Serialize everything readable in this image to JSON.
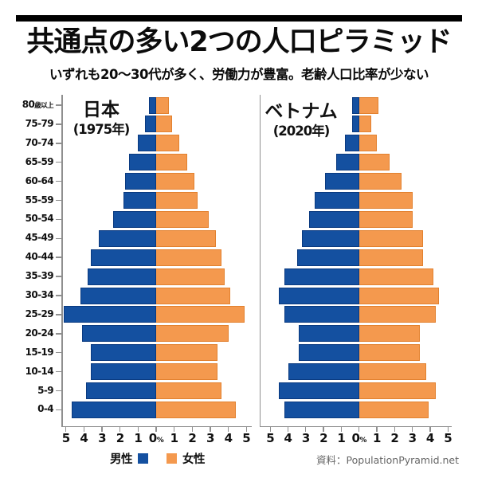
{
  "header": {
    "title": "共通点の多い2つの人口ピラミッド",
    "subtitle": "いずれも20〜30代が多く、労働力が豊富。老齢人口比率が少ない"
  },
  "source": "資料：PopulationPyramid.net",
  "chart_data": {
    "type": "bar",
    "subtype": "population-pyramid-pair",
    "unit": "% of total population",
    "grid": false,
    "xlim_each_side": 5,
    "age_groups_top_to_bottom": [
      "80歳以上",
      "75-79",
      "70-74",
      "65-59",
      "60-64",
      "55-59",
      "50-54",
      "45-49",
      "40-44",
      "35-39",
      "30-34",
      "25-29",
      "20-24",
      "15-19",
      "10-14",
      "5-9",
      "0-4"
    ],
    "axis_ticks": [
      "5",
      "4",
      "3",
      "2",
      "1",
      "0%",
      "1",
      "2",
      "3",
      "4",
      "5"
    ],
    "pyramids": [
      {
        "title": "日本",
        "year_label": "(1975年)",
        "male_top_to_bottom": [
          0.4,
          0.6,
          1.0,
          1.5,
          1.7,
          1.8,
          2.4,
          3.2,
          3.6,
          3.8,
          4.2,
          5.1,
          4.1,
          3.6,
          3.6,
          3.9,
          4.7
        ],
        "female_top_to_bottom": [
          0.7,
          0.9,
          1.3,
          1.7,
          2.1,
          2.3,
          2.9,
          3.3,
          3.6,
          3.8,
          4.1,
          4.9,
          4.0,
          3.4,
          3.4,
          3.6,
          4.4
        ]
      },
      {
        "title": "ベトナム",
        "year_label": "(2020年)",
        "male_top_to_bottom": [
          0.4,
          0.4,
          0.8,
          1.3,
          1.9,
          2.5,
          2.8,
          3.2,
          3.5,
          4.2,
          4.5,
          4.2,
          3.4,
          3.4,
          4.0,
          4.5,
          4.2
        ],
        "female_top_to_bottom": [
          1.1,
          0.7,
          1.0,
          1.7,
          2.4,
          3.0,
          3.0,
          3.6,
          3.6,
          4.2,
          4.5,
          4.3,
          3.4,
          3.4,
          3.8,
          4.3,
          3.9
        ]
      }
    ],
    "legend": {
      "male_label": "男性",
      "female_label": "女性"
    },
    "colors": {
      "male": "#1450a0",
      "female": "#f4994e"
    }
  }
}
